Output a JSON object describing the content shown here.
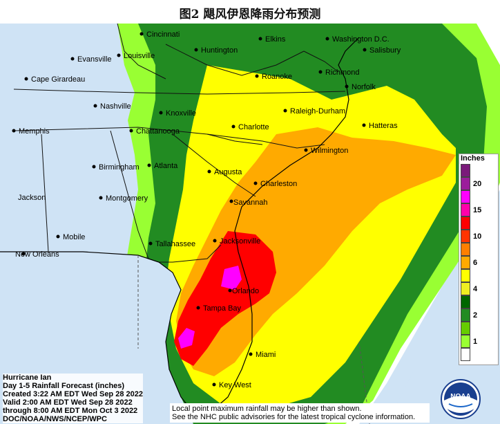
{
  "figure_title": "图2 飓风伊恩降雨分布预测",
  "legend": {
    "title": "Inches",
    "entries": [
      {
        "label": "",
        "color": "#7a1a7a"
      },
      {
        "label": "20",
        "color": "#9b1d9b"
      },
      {
        "label": "",
        "color": "#ff00ff"
      },
      {
        "label": "15",
        "color": "#ff00aa"
      },
      {
        "label": "",
        "color": "#ff0000"
      },
      {
        "label": "10",
        "color": "#ff3300"
      },
      {
        "label": "",
        "color": "#ff7f00"
      },
      {
        "label": "6",
        "color": "#ffaa00"
      },
      {
        "label": "",
        "color": "#ffff00"
      },
      {
        "label": "4",
        "color": "#eeee22"
      },
      {
        "label": "",
        "color": "#006600"
      },
      {
        "label": "2",
        "color": "#228b22"
      },
      {
        "label": "",
        "color": "#66cc00"
      },
      {
        "label": "1",
        "color": "#99ff33"
      },
      {
        "label": "",
        "color": "#ffffff"
      }
    ]
  },
  "cities": {
    "cincinnati": "Cincinnati",
    "louisville": "Louisville",
    "evansville": "Evansville",
    "cape_girardeau": "Cape Girardeau",
    "huntington": "Huntington",
    "elkins": "Elkins",
    "washington": "Washington D.C.",
    "salisbury": "Salisbury",
    "richmond": "Richmond",
    "roanoke": "Roanoke",
    "norfolk": "Norfolk",
    "nashville": "Nashville",
    "knoxville": "Knoxville",
    "raleigh_durham": "Raleigh-Durham",
    "memphis": "Memphis",
    "chattanooga": "Chattanooga",
    "charlotte": "Charlotte",
    "hatteras": "Hatteras",
    "wilmington": "Wilmington",
    "birmingham": "Birmingham",
    "atlanta": "Atlanta",
    "augusta": "Augusta",
    "charleston": "Charleston",
    "jackson": "Jackson",
    "montgomery": "Montgomery",
    "savannah": "Savannah",
    "mobile": "Mobile",
    "new_orleans": "New Orleans",
    "tallahassee": "Tallahassee",
    "jacksonville": "Jacksonville",
    "orlando": "Orlando",
    "tampa_bay": "Tampa Bay",
    "miami": "Miami",
    "key_west": "Key West"
  },
  "info": {
    "line1": "Hurricane Ian",
    "line2": "Day 1-5 Rainfall Forecast (inches)",
    "line3": "Created 3:22 AM EDT Wed Sep 28 2022",
    "line4": "Valid 2:00 AM EDT Wed Sep 28 2022",
    "line5": "through 8:00 AM EDT Mon Oct 3 2022",
    "line6": "DOC/NOAA/NWS/NCEP/WPC"
  },
  "note": {
    "line1": "Local point maximum rainfall may be higher than shown.",
    "line2": "See the NHC public advisories for the latest tropical cyclone information."
  },
  "logo_text": "NOAA",
  "colors": {
    "water": "#cfe3f5",
    "land": "#ffffff"
  }
}
